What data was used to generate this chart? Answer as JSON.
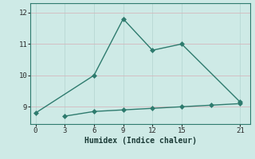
{
  "xlabel": "Humidex (Indice chaleur)",
  "background_color": "#ceeae6",
  "grid_color": "#b8d8d4",
  "line_color": "#2e7b6e",
  "series1_x": [
    0,
    6,
    9,
    12,
    15,
    21
  ],
  "series1_y": [
    8.8,
    10.0,
    11.8,
    10.8,
    11.0,
    9.15
  ],
  "series2_x": [
    3,
    6,
    9,
    12,
    15,
    18,
    21
  ],
  "series2_y": [
    8.7,
    8.85,
    8.9,
    8.95,
    9.0,
    9.05,
    9.1
  ],
  "xlim": [
    -0.5,
    22
  ],
  "ylim": [
    8.45,
    12.3
  ],
  "xticks": [
    0,
    3,
    6,
    9,
    12,
    15,
    21
  ],
  "yticks": [
    9,
    10,
    11,
    12
  ],
  "markersize": 3,
  "linewidth": 1.0
}
